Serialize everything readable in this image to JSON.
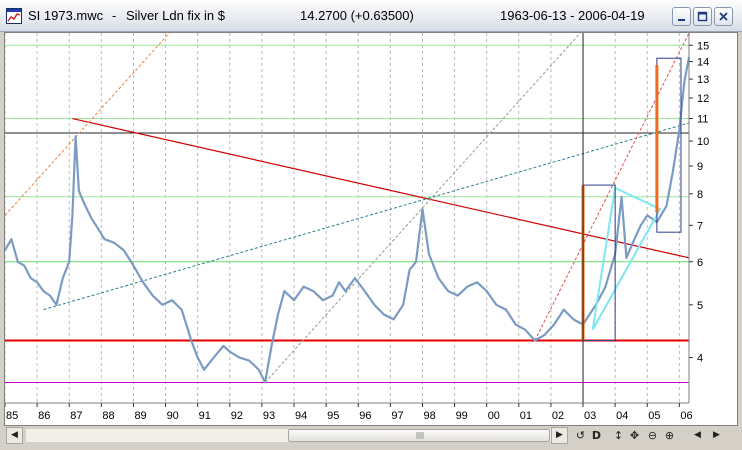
{
  "window": {
    "filename": "SI 1973.mwc",
    "separator": "-",
    "instrument": "Silver Ldn fix in $",
    "last_price": "14.2700 (+0.63500)",
    "date_range": "1963-06-13 - 2006-04-19"
  },
  "toolbar": {
    "scroll_left": "◀",
    "scroll_right": "▶",
    "reset": "↺",
    "mode": "D",
    "vertical": "↕",
    "pan": "✥",
    "zoom_out": "⊖",
    "zoom_in": "⊕",
    "prev": "◀",
    "next": "▶"
  },
  "colors": {
    "price": "#7b9bc2",
    "support": "#e00000",
    "resistance_soft": "#99e699",
    "lime": "#66dd66",
    "magenta": "#cc00cc",
    "orange": "#f26b1d",
    "cyan": "#7ee8ee",
    "navy": "#2d3e8c",
    "dashed_red": "#e05050",
    "dashed_teal": "#2f7f8f",
    "dashed_olive": "#90a080",
    "dashed_orange": "#f08040"
  },
  "chart_data": {
    "type": "line",
    "y_scale": "log",
    "ylim": [
      3.3,
      15.8
    ],
    "y_ticks": [
      "15",
      "14",
      "13",
      "12",
      "11",
      "10",
      "9",
      "8",
      "7",
      "6",
      "5",
      "4"
    ],
    "x_ticks": [
      "85",
      "86",
      "87",
      "88",
      "89",
      "90",
      "91",
      "92",
      "93",
      "94",
      "95",
      "96",
      "97",
      "98",
      "99",
      "00",
      "01",
      "02",
      "03",
      "04",
      "05",
      "06"
    ],
    "xlim": [
      1985.0,
      2006.3
    ],
    "series": [
      {
        "x": [
          1985.0,
          1985.2,
          1985.4,
          1985.6,
          1985.8,
          1986.0,
          1986.2,
          1986.4,
          1986.6,
          1986.8,
          1987.0,
          1987.1,
          1987.2,
          1987.3,
          1987.5,
          1987.7,
          1987.9,
          1988.1,
          1988.4,
          1988.7,
          1989.0,
          1989.3,
          1989.6,
          1989.9,
          1990.2,
          1990.5,
          1990.8,
          1991.0,
          1991.2,
          1991.5,
          1991.8,
          1992.0,
          1992.3,
          1992.6,
          1992.9,
          1993.1,
          1993.3,
          1993.5,
          1993.7,
          1994.0,
          1994.3,
          1994.6,
          1994.9,
          1995.2,
          1995.4,
          1995.6,
          1995.9,
          1996.2,
          1996.5,
          1996.8,
          1997.1,
          1997.4,
          1997.6,
          1997.8,
          1998.0,
          1998.2,
          1998.5,
          1998.8,
          1999.1,
          1999.4,
          1999.7,
          2000.0,
          2000.3,
          2000.6,
          2000.9,
          2001.2,
          2001.5,
          2001.8,
          2002.1,
          2002.4,
          2002.7,
          2003.0,
          2003.2,
          2003.4,
          2003.7,
          2004.0,
          2004.2,
          2004.35,
          2004.6,
          2004.8,
          2005.0,
          2005.3,
          2005.6,
          2005.8,
          2006.0,
          2006.15,
          2006.3
        ],
        "y": [
          6.3,
          6.6,
          6.0,
          5.9,
          5.6,
          5.5,
          5.3,
          5.2,
          5.0,
          5.6,
          6.0,
          7.3,
          10.2,
          8.1,
          7.6,
          7.2,
          6.9,
          6.6,
          6.5,
          6.3,
          5.9,
          5.5,
          5.2,
          5.0,
          5.1,
          4.9,
          4.3,
          4.0,
          3.8,
          4.0,
          4.2,
          4.1,
          4.0,
          3.95,
          3.8,
          3.6,
          4.2,
          4.8,
          5.3,
          5.1,
          5.4,
          5.3,
          5.1,
          5.2,
          5.5,
          5.3,
          5.6,
          5.3,
          5.0,
          4.8,
          4.7,
          5.0,
          5.8,
          6.0,
          7.5,
          6.2,
          5.6,
          5.3,
          5.2,
          5.4,
          5.5,
          5.3,
          5.0,
          4.9,
          4.6,
          4.5,
          4.3,
          4.4,
          4.6,
          4.9,
          4.7,
          4.6,
          4.8,
          5.0,
          5.4,
          6.2,
          7.9,
          6.1,
          6.6,
          7.0,
          7.3,
          7.1,
          7.6,
          8.8,
          10.5,
          12.8,
          14.27
        ]
      }
    ],
    "horizontal_lines": [
      {
        "y": 15.0,
        "color": "#99e699"
      },
      {
        "y": 11.0,
        "color": "#99e699"
      },
      {
        "y": 10.35,
        "color": "#222222"
      },
      {
        "y": 7.9,
        "color": "#99e699"
      },
      {
        "y": 6.0,
        "color": "#66dd66"
      },
      {
        "y": 4.3,
        "color": "#e00000"
      },
      {
        "y": 3.6,
        "color": "#cc00cc"
      }
    ],
    "trend_lines": [
      {
        "x1": 1987.1,
        "y1": 11.0,
        "x2": 2006.3,
        "y2": 6.1,
        "color": "#cc0000"
      },
      {
        "x1": 1986.2,
        "y1": 4.9,
        "x2": 2006.3,
        "y2": 10.8,
        "color": "#2f7f8f",
        "dashed": true
      },
      {
        "x1": 1993.1,
        "y1": 3.6,
        "x2": 2003.0,
        "y2": 16.0,
        "color": "#90a080",
        "dashed": true
      },
      {
        "x1": 1985.0,
        "y1": 7.3,
        "x2": 1990.2,
        "y2": 16.0,
        "color": "#f08040",
        "dashed": true
      },
      {
        "x1": 2001.5,
        "y1": 4.3,
        "x2": 2006.3,
        "y2": 15.8,
        "color": "#e05050",
        "dashed": true
      }
    ],
    "vertical_marker": {
      "x": 2003.0
    },
    "orange_bars": [
      {
        "x": 2003.0,
        "y1": 4.3,
        "y2": 8.3
      },
      {
        "x": 2005.3,
        "y1": 7.4,
        "y2": 13.8
      }
    ]
  }
}
